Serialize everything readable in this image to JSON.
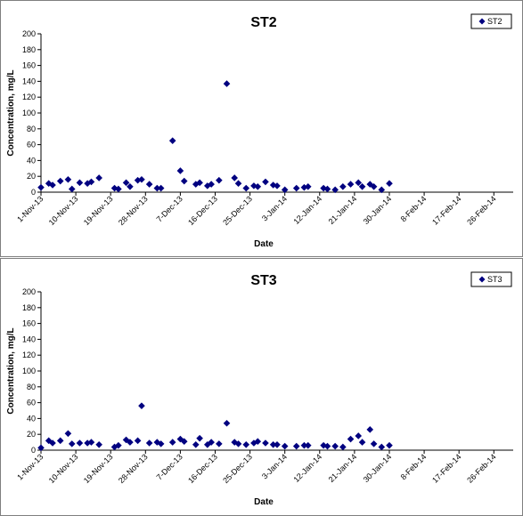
{
  "chart_data": [
    {
      "type": "scatter",
      "title": "ST2",
      "xlabel": "Date",
      "ylabel": "Concentration, mg/L",
      "ylim": [
        0,
        200
      ],
      "yticks": [
        "0",
        "20",
        "40",
        "60",
        "80",
        "100",
        "120",
        "140",
        "160",
        "180",
        "200"
      ],
      "xticks": [
        "1-Nov-13",
        "10-Nov-13",
        "19-Nov-13",
        "28-Nov-13",
        "7-Dec-13",
        "16-Dec-13",
        "25-Dec-13",
        "3-Jan-14",
        "12-Jan-14",
        "21-Jan-14",
        "30-Jan-14",
        "8-Feb-14",
        "17-Feb-14",
        "26-Feb-14"
      ],
      "legend": "top-right",
      "grid": false,
      "marker_color": "#000080",
      "series": [
        {
          "name": "ST2",
          "points": [
            [
              "2013-11-01",
              6
            ],
            [
              "2013-11-03",
              11
            ],
            [
              "2013-11-04",
              9
            ],
            [
              "2013-11-06",
              14
            ],
            [
              "2013-11-08",
              16
            ],
            [
              "2013-11-09",
              4
            ],
            [
              "2013-11-11",
              12
            ],
            [
              "2013-11-13",
              11
            ],
            [
              "2013-11-14",
              13
            ],
            [
              "2013-11-16",
              18
            ],
            [
              "2013-11-20",
              5
            ],
            [
              "2013-11-21",
              4
            ],
            [
              "2013-11-23",
              12
            ],
            [
              "2013-11-24",
              7
            ],
            [
              "2013-11-26",
              15
            ],
            [
              "2013-11-27",
              16
            ],
            [
              "2013-11-29",
              10
            ],
            [
              "2013-12-01",
              5
            ],
            [
              "2013-12-02",
              5
            ],
            [
              "2013-12-05",
              65
            ],
            [
              "2013-12-07",
              27
            ],
            [
              "2013-12-08",
              14
            ],
            [
              "2013-12-11",
              10
            ],
            [
              "2013-12-12",
              12
            ],
            [
              "2013-12-14",
              8
            ],
            [
              "2013-12-15",
              10
            ],
            [
              "2013-12-17",
              15
            ],
            [
              "2013-12-19",
              137
            ],
            [
              "2013-12-21",
              18
            ],
            [
              "2013-12-22",
              11
            ],
            [
              "2013-12-24",
              5
            ],
            [
              "2013-12-26",
              8
            ],
            [
              "2013-12-27",
              7
            ],
            [
              "2013-12-29",
              13
            ],
            [
              "2013-12-31",
              9
            ],
            [
              "2014-01-01",
              8
            ],
            [
              "2014-01-03",
              3
            ],
            [
              "2014-01-06",
              5
            ],
            [
              "2014-01-08",
              6
            ],
            [
              "2014-01-09",
              7
            ],
            [
              "2014-01-13",
              5
            ],
            [
              "2014-01-14",
              4
            ],
            [
              "2014-01-16",
              3
            ],
            [
              "2014-01-18",
              7
            ],
            [
              "2014-01-20",
              10
            ],
            [
              "2014-01-22",
              12
            ],
            [
              "2014-01-23",
              7
            ],
            [
              "2014-01-25",
              10
            ],
            [
              "2014-01-26",
              7
            ],
            [
              "2014-01-28",
              3
            ],
            [
              "2014-01-30",
              11
            ]
          ]
        }
      ]
    },
    {
      "type": "scatter",
      "title": "ST3",
      "xlabel": "Date",
      "ylabel": "Concentration, mg/L",
      "ylim": [
        0,
        200
      ],
      "yticks": [
        "0",
        "20",
        "40",
        "60",
        "80",
        "100",
        "120",
        "140",
        "160",
        "180",
        "200"
      ],
      "xticks": [
        "1-Nov-13",
        "10-Nov-13",
        "19-Nov-13",
        "28-Nov-13",
        "7-Dec-13",
        "16-Dec-13",
        "25-Dec-13",
        "3-Jan-14",
        "12-Jan-14",
        "21-Jan-14",
        "30-Jan-14",
        "8-Feb-14",
        "17-Feb-14",
        "26-Feb-14"
      ],
      "legend": "top-right",
      "grid": false,
      "marker_color": "#000080",
      "series": [
        {
          "name": "ST3",
          "points": [
            [
              "2013-11-01",
              3
            ],
            [
              "2013-11-03",
              12
            ],
            [
              "2013-11-04",
              9
            ],
            [
              "2013-11-06",
              12
            ],
            [
              "2013-11-08",
              21
            ],
            [
              "2013-11-09",
              8
            ],
            [
              "2013-11-11",
              9
            ],
            [
              "2013-11-13",
              9
            ],
            [
              "2013-11-14",
              10
            ],
            [
              "2013-11-16",
              7
            ],
            [
              "2013-11-20",
              4
            ],
            [
              "2013-11-21",
              6
            ],
            [
              "2013-11-23",
              13
            ],
            [
              "2013-11-24",
              10
            ],
            [
              "2013-11-26",
              12
            ],
            [
              "2013-11-27",
              56
            ],
            [
              "2013-11-29",
              9
            ],
            [
              "2013-12-01",
              10
            ],
            [
              "2013-12-02",
              8
            ],
            [
              "2013-12-05",
              10
            ],
            [
              "2013-12-07",
              14
            ],
            [
              "2013-12-08",
              11
            ],
            [
              "2013-12-11",
              7
            ],
            [
              "2013-12-12",
              15
            ],
            [
              "2013-12-14",
              7
            ],
            [
              "2013-12-15",
              10
            ],
            [
              "2013-12-17",
              8
            ],
            [
              "2013-12-19",
              34
            ],
            [
              "2013-12-21",
              10
            ],
            [
              "2013-12-22",
              8
            ],
            [
              "2013-12-24",
              7
            ],
            [
              "2013-12-26",
              9
            ],
            [
              "2013-12-27",
              11
            ],
            [
              "2013-12-29",
              9
            ],
            [
              "2013-12-31",
              7
            ],
            [
              "2014-01-01",
              7
            ],
            [
              "2014-01-03",
              5
            ],
            [
              "2014-01-06",
              5
            ],
            [
              "2014-01-08",
              6
            ],
            [
              "2014-01-09",
              6
            ],
            [
              "2014-01-13",
              6
            ],
            [
              "2014-01-14",
              5
            ],
            [
              "2014-01-16",
              5
            ],
            [
              "2014-01-18",
              4
            ],
            [
              "2014-01-20",
              14
            ],
            [
              "2014-01-22",
              18
            ],
            [
              "2014-01-23",
              10
            ],
            [
              "2014-01-25",
              26
            ],
            [
              "2014-01-26",
              8
            ],
            [
              "2014-01-28",
              4
            ],
            [
              "2014-01-30",
              6
            ]
          ]
        }
      ]
    }
  ]
}
